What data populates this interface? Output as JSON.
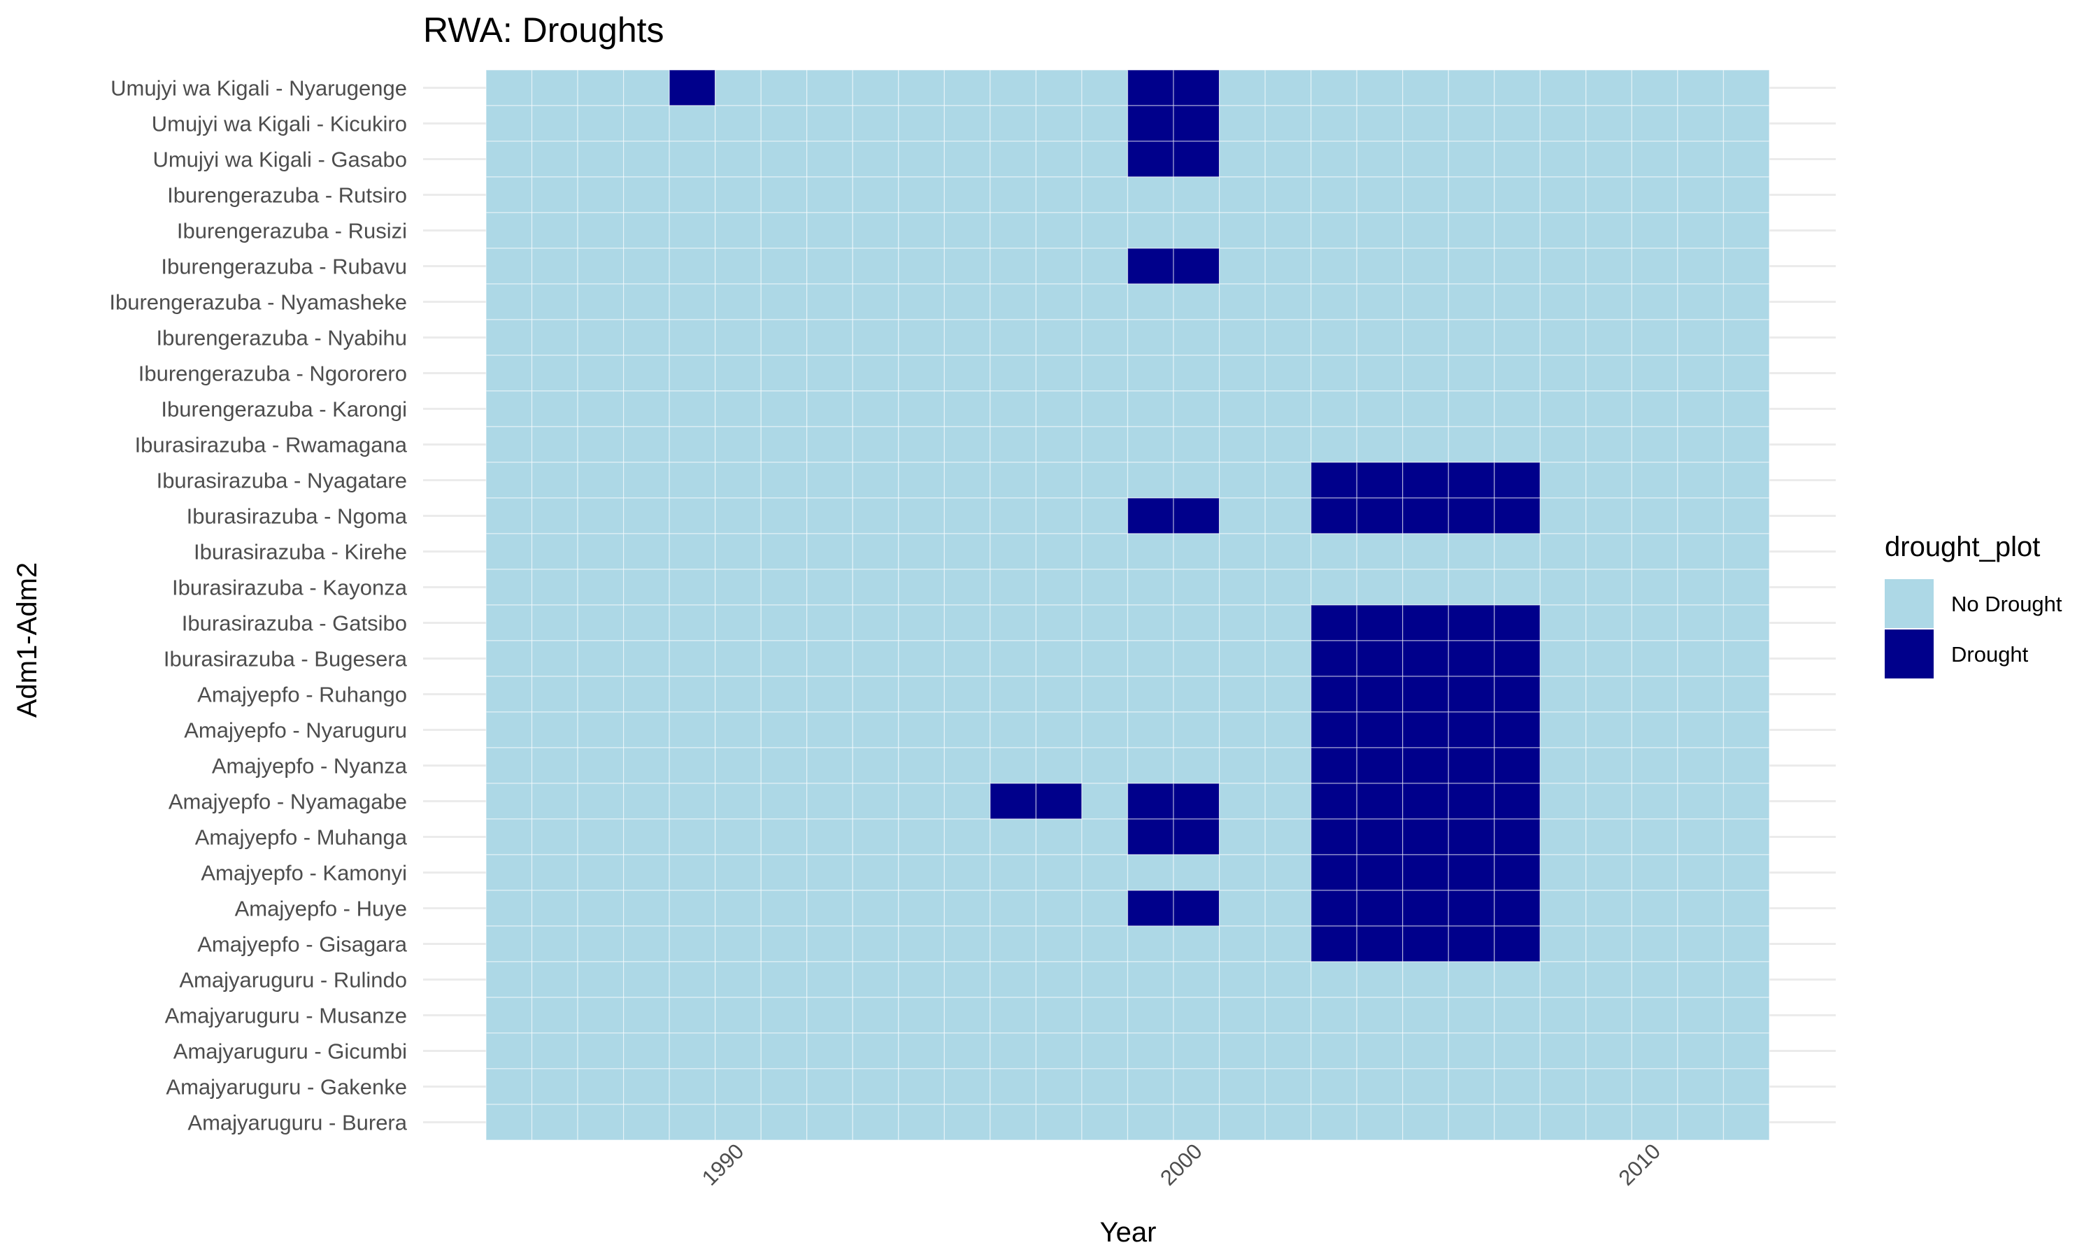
{
  "chart_data": {
    "type": "heatmap",
    "title": "RWA: Droughts",
    "xlabel": "Year",
    "ylabel": "Adm1-Adm2",
    "x_years": [
      1985,
      1986,
      1987,
      1988,
      1989,
      1990,
      1991,
      1992,
      1993,
      1994,
      1995,
      1996,
      1997,
      1998,
      1999,
      2000,
      2001,
      2002,
      2003,
      2004,
      2005,
      2006,
      2007,
      2008,
      2009,
      2010,
      2011,
      2012
    ],
    "x_ticks": [
      "1990",
      "2000",
      "2010"
    ],
    "x_tick_values": [
      1990,
      2000,
      2010
    ],
    "xlim": [
      1984.5,
      2012.5
    ],
    "categories": [
      "Umujyi wa Kigali - Nyarugenge",
      "Umujyi wa Kigali - Kicukiro",
      "Umujyi wa Kigali - Gasabo",
      "Iburengerazuba - Rutsiro",
      "Iburengerazuba - Rusizi",
      "Iburengerazuba - Rubavu",
      "Iburengerazuba - Nyamasheke",
      "Iburengerazuba - Nyabihu",
      "Iburengerazuba - Ngororero",
      "Iburengerazuba - Karongi",
      "Iburasirazuba - Rwamagana",
      "Iburasirazuba - Nyagatare",
      "Iburasirazuba - Ngoma",
      "Iburasirazuba - Kirehe",
      "Iburasirazuba - Kayonza",
      "Iburasirazuba - Gatsibo",
      "Iburasirazuba - Bugesera",
      "Amajyepfo - Ruhango",
      "Amajyepfo - Nyaruguru",
      "Amajyepfo - Nyanza",
      "Amajyepfo - Nyamagabe",
      "Amajyepfo - Muhanga",
      "Amajyepfo - Kamonyi",
      "Amajyepfo - Huye",
      "Amajyepfo - Gisagara",
      "Amajyaruguru - Rulindo",
      "Amajyaruguru - Musanze",
      "Amajyaruguru - Gicumbi",
      "Amajyaruguru - Gakenke",
      "Amajyaruguru - Burera"
    ],
    "drought_years": {
      "Umujyi wa Kigali - Nyarugenge": [
        1989,
        1999,
        2000
      ],
      "Umujyi wa Kigali - Kicukiro": [
        1999,
        2000
      ],
      "Umujyi wa Kigali - Gasabo": [
        1999,
        2000
      ],
      "Iburengerazuba - Rubavu": [
        1999,
        2000
      ],
      "Iburasirazuba - Nyagatare": [
        2003,
        2004,
        2005,
        2006,
        2007
      ],
      "Iburasirazuba - Ngoma": [
        1999,
        2000,
        2003,
        2004,
        2005,
        2006,
        2007
      ],
      "Iburasirazuba - Gatsibo": [
        2003,
        2004,
        2005,
        2006,
        2007
      ],
      "Iburasirazuba - Bugesera": [
        2003,
        2004,
        2005,
        2006,
        2007
      ],
      "Amajyepfo - Ruhango": [
        2003,
        2004,
        2005,
        2006,
        2007
      ],
      "Amajyepfo - Nyaruguru": [
        2003,
        2004,
        2005,
        2006,
        2007
      ],
      "Amajyepfo - Nyanza": [
        2003,
        2004,
        2005,
        2006,
        2007
      ],
      "Amajyepfo - Nyamagabe": [
        1996,
        1997,
        1999,
        2000,
        2003,
        2004,
        2005,
        2006,
        2007
      ],
      "Amajyepfo - Muhanga": [
        1999,
        2000,
        2003,
        2004,
        2005,
        2006,
        2007
      ],
      "Amajyepfo - Kamonyi": [
        2003,
        2004,
        2005,
        2006,
        2007
      ],
      "Amajyepfo - Huye": [
        1999,
        2000,
        2003,
        2004,
        2005,
        2006,
        2007
      ],
      "Amajyepfo - Gisagara": [
        2003,
        2004,
        2005,
        2006,
        2007
      ]
    },
    "legend": {
      "title": "drought_plot",
      "position": "right",
      "entries": [
        {
          "label": "No Drought",
          "color": "#add8e6"
        },
        {
          "label": "Drought",
          "color": "#00008b"
        }
      ]
    },
    "colors": {
      "no_drought": "#add8e6",
      "drought": "#00008b",
      "grid": "#ebebeb"
    },
    "grid": true
  }
}
